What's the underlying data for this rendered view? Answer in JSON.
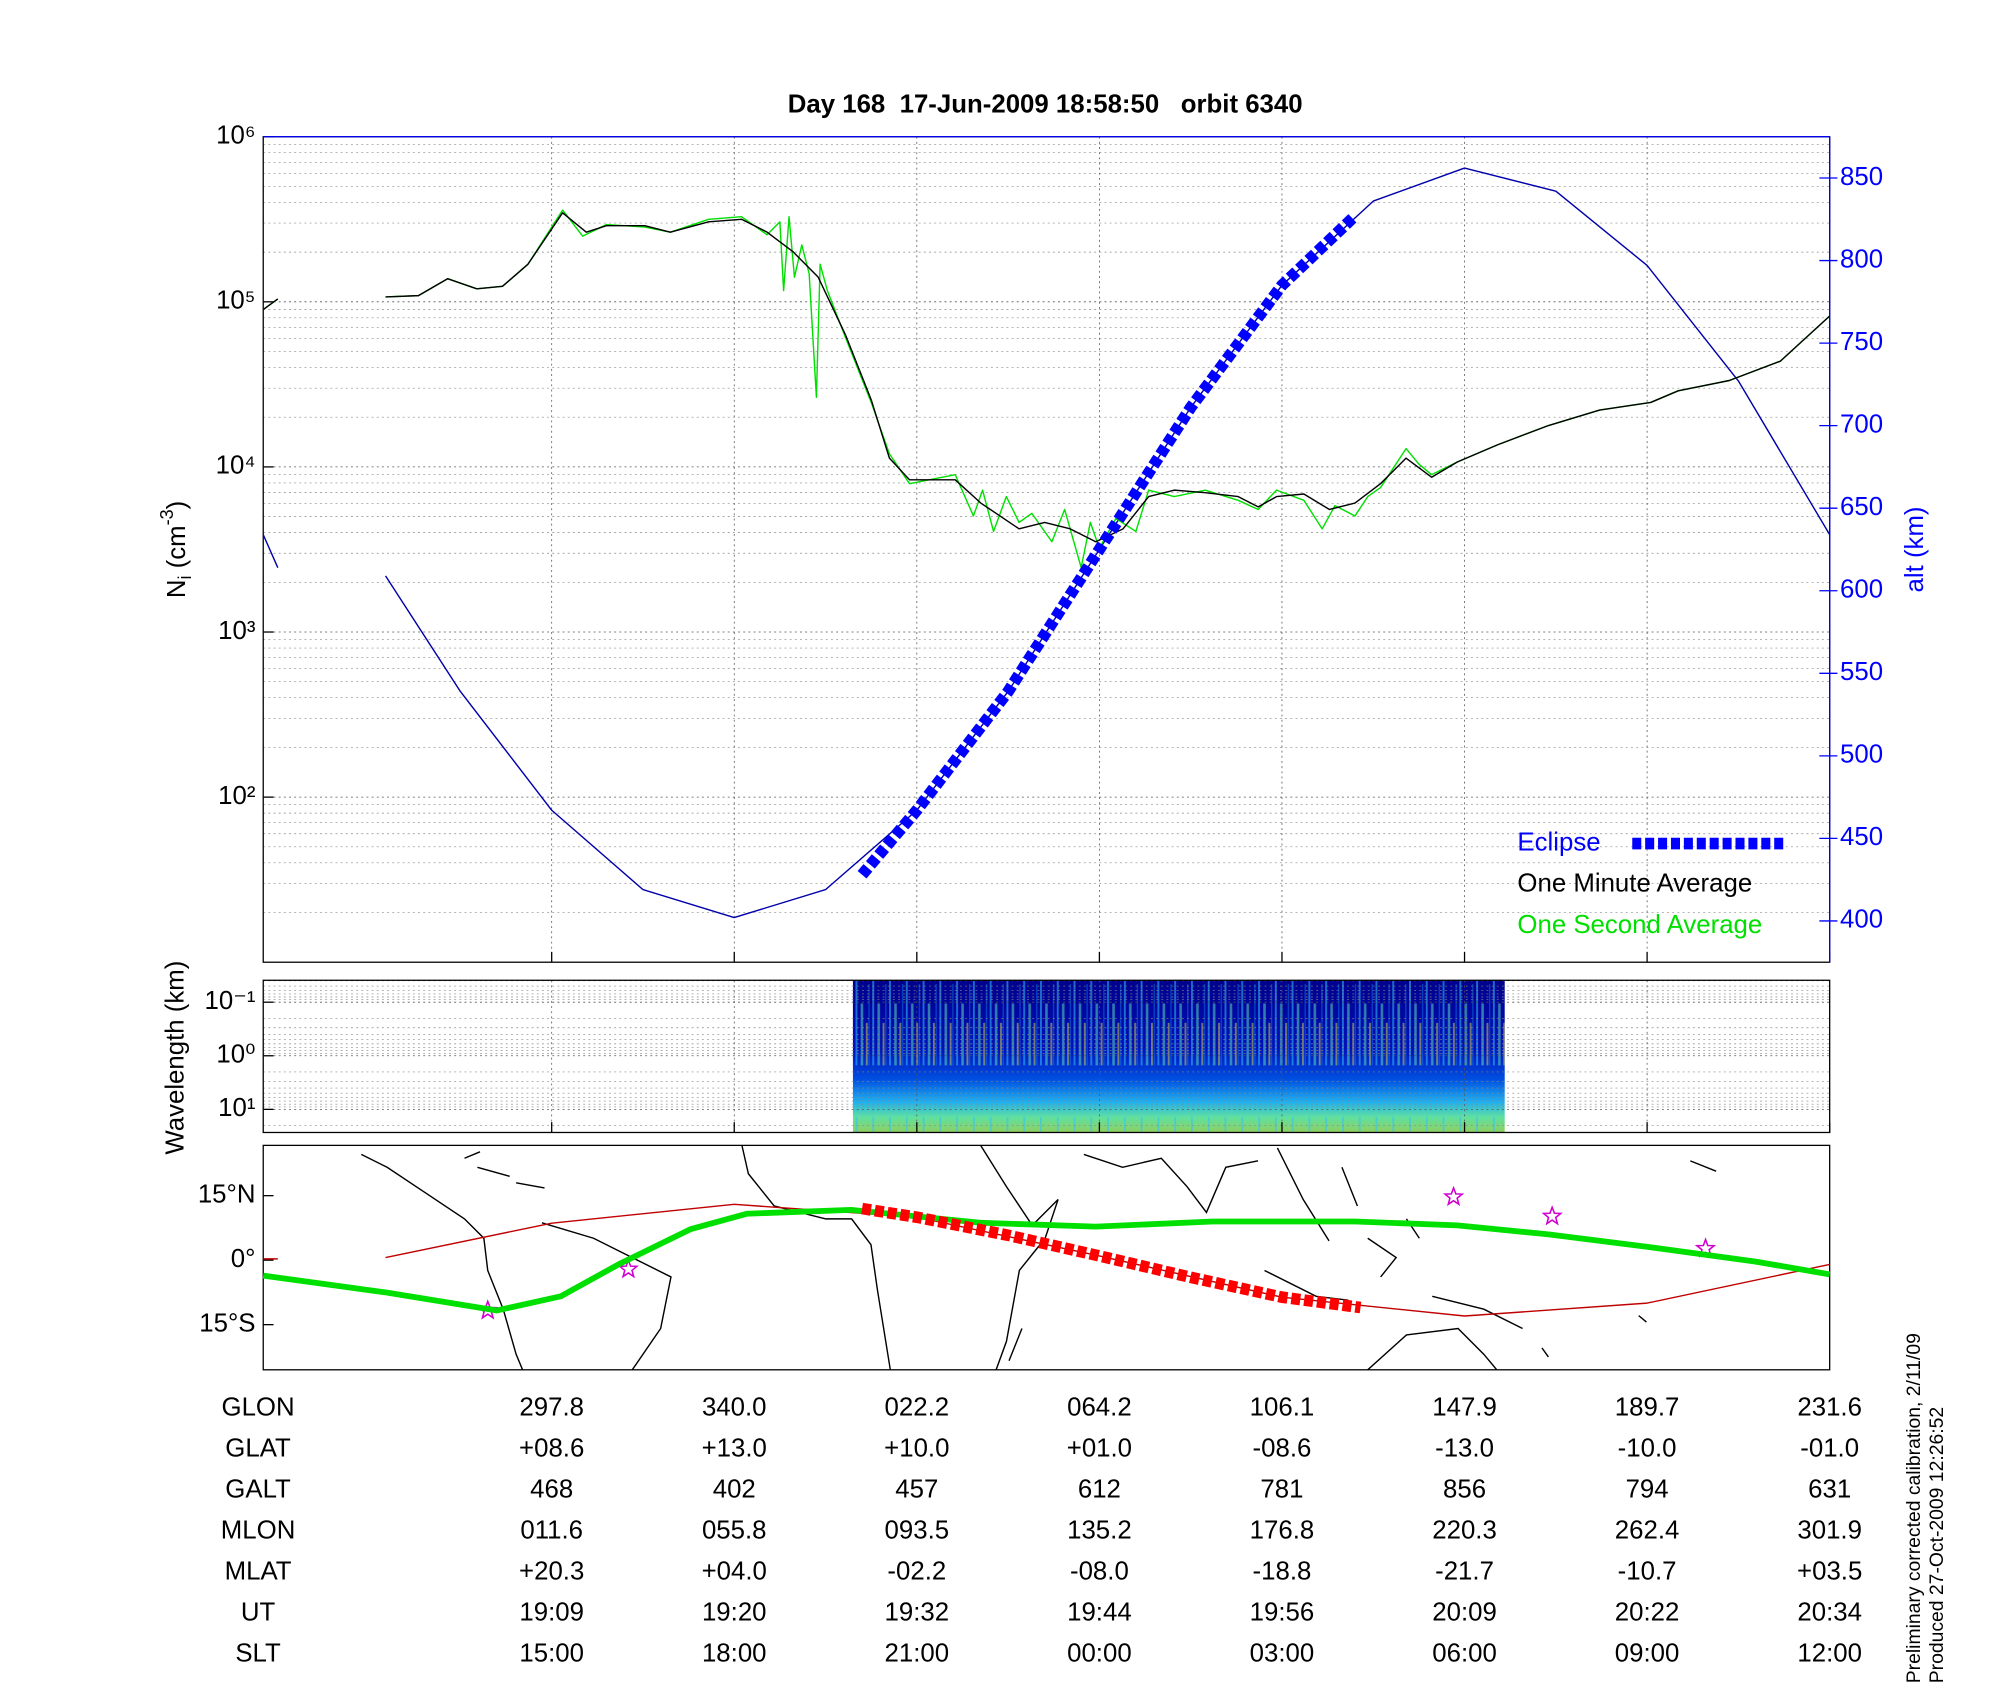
{
  "chart_data": [
    {
      "type": "line",
      "title": "Day 168  17-Jun-2009 18:58:50   orbit 6340",
      "ylabel": {
        "text": "N",
        "sub": "i",
        "unit": " (cm",
        "sup": "-3",
        "close": ")"
      },
      "y2label": "alt (km)",
      "xlim": [
        -1.58,
        7
      ],
      "xticks": [
        0,
        1,
        2,
        3,
        4,
        5,
        6,
        7
      ],
      "ylog": true,
      "ylim": [
        10,
        1000000
      ],
      "yticks": [
        {
          "value": 100,
          "label": "10²"
        },
        {
          "value": 1000,
          "label": "10³"
        },
        {
          "value": 10000,
          "label": "10⁴"
        },
        {
          "value": 100000,
          "label": "10⁵"
        },
        {
          "value": 1000000,
          "label": "10⁶"
        }
      ],
      "yminorticks": [
        20,
        30,
        40,
        50,
        60,
        70,
        80,
        90,
        200,
        300,
        400,
        500,
        600,
        700,
        800,
        900,
        2000,
        3000,
        4000,
        5000,
        6000,
        7000,
        8000,
        9000,
        20000,
        30000,
        40000,
        50000,
        60000,
        70000,
        80000,
        90000,
        200000,
        300000,
        400000,
        500000,
        600000,
        700000,
        800000,
        900000
      ],
      "y2lim": [
        375,
        875
      ],
      "y2ticks": [
        400,
        450,
        500,
        550,
        600,
        650,
        700,
        750,
        800,
        850
      ],
      "y2color": "#0000ff",
      "grid": true,
      "legend": "lower right",
      "series": [
        {
          "name": "Eclipse",
          "color": "#0000ff",
          "style": "dashed",
          "axis": "y2",
          "x": [
            1.7,
            2,
            2.5,
            3,
            3.5,
            4,
            4.4
          ],
          "values": [
            428,
            467,
            539,
            625,
            711,
            785,
            827
          ]
        },
        {
          "name": "One Minute Average",
          "color": "#000000",
          "style": "solid",
          "x": [
            -1.58,
            -1.5,
            null,
            -0.91,
            -0.73,
            -0.57,
            -0.41,
            -0.27,
            -0.13,
            0.06,
            0.19,
            0.3,
            0.51,
            0.65,
            0.86,
            1.04,
            1.18,
            1.32,
            1.46,
            1.61,
            1.75,
            1.85,
            1.96,
            2.21,
            2.35,
            2.56,
            2.7,
            2.84,
            2.98,
            3.13,
            3.27,
            3.41,
            3.58,
            3.76,
            3.87,
            3.97,
            4.12,
            4.26,
            4.4,
            4.54,
            4.68,
            4.82,
            4.96,
            5.18,
            5.46,
            5.74,
            6.02,
            6.17,
            6.45,
            6.73,
            7.0
          ],
          "values": [
            89800,
            104000,
            null,
            107000,
            109000,
            138000,
            120000,
            124000,
            169000,
            346000,
            264000,
            289000,
            289000,
            264000,
            305000,
            316000,
            264000,
            202000,
            141000,
            62600,
            25500,
            11300,
            8350,
            8350,
            6040,
            4220,
            4610,
            4220,
            3520,
            4220,
            6610,
            7230,
            6980,
            6610,
            5730,
            6610,
            6850,
            5520,
            6040,
            7910,
            11300,
            8660,
            10700,
            13600,
            17800,
            22100,
            24600,
            28900,
            33400,
            43700,
            82000
          ]
        },
        {
          "name": "One Second Average",
          "color": "#00e000",
          "style": "solid",
          "x": [
            -1.58,
            -1.5,
            null,
            -0.91,
            -0.73,
            -0.57,
            -0.41,
            -0.27,
            -0.13,
            0.06,
            0.17,
            0.3,
            0.51,
            0.65,
            0.86,
            1.04,
            1.18,
            1.25,
            1.27,
            1.3,
            1.33,
            1.37,
            1.41,
            1.45,
            1.47,
            1.51,
            1.61,
            1.75,
            1.85,
            1.96,
            2.21,
            2.31,
            2.36,
            2.42,
            2.49,
            2.56,
            2.63,
            2.74,
            2.81,
            2.9,
            2.95,
            3.0,
            3.09,
            3.2,
            3.27,
            3.41,
            3.58,
            3.76,
            3.87,
            3.97,
            4.12,
            4.22,
            4.29,
            4.4,
            4.47,
            4.54,
            4.68,
            4.75,
            4.82,
            4.96,
            5.18,
            5.46,
            5.74,
            6.02,
            6.17,
            6.45,
            6.73,
            7.0
          ],
          "values": [
            89800,
            104000,
            null,
            107000,
            109000,
            138000,
            120000,
            124000,
            169000,
            359000,
            250000,
            294000,
            284000,
            264000,
            316000,
            328000,
            255000,
            305000,
            117000,
            328000,
            141000,
            221000,
            148000,
            26400,
            169000,
            117000,
            60400,
            24600,
            12000,
            7910,
            8980,
            5050,
            7230,
            4070,
            6610,
            4610,
            5230,
            3520,
            5520,
            2460,
            4610,
            3220,
            4870,
            4070,
            7230,
            6610,
            7230,
            6270,
            5520,
            7230,
            6270,
            4220,
            5830,
            5050,
            6610,
            7500,
            12900,
            10400,
            8980,
            10700,
            13600,
            17800,
            22100,
            24600,
            28900,
            33400,
            43700,
            82000
          ]
        },
        {
          "color": "#0000aa",
          "style": "solid",
          "axis": "y2",
          "x": [
            -1.58,
            -1.5,
            null,
            -0.91,
            -0.5,
            0,
            0.5,
            1,
            1.5,
            2,
            2.5,
            3,
            3.5,
            4,
            4.5,
            5,
            5.5,
            6,
            6.5,
            7
          ],
          "values": [
            634,
            614,
            null,
            609,
            539,
            467,
            419,
            402,
            419,
            467,
            539,
            625,
            711,
            785,
            836,
            856,
            842,
            797,
            727,
            634
          ]
        }
      ]
    },
    {
      "type": "spectrogram",
      "ylabel": "Wavelength (km)",
      "xlim": [
        -1.58,
        7
      ],
      "xticks": [
        0,
        1,
        2,
        3,
        4,
        5,
        6,
        7
      ],
      "ylog": true,
      "ylim": [
        27,
        0.039
      ],
      "yticks": [
        {
          "value": 0.1,
          "label": "10⁻¹"
        },
        {
          "value": 1,
          "label": "10⁰"
        },
        {
          "value": 10,
          "label": "10¹"
        }
      ],
      "yminorticks": [
        0.04,
        0.05,
        0.06,
        0.07,
        0.08,
        0.09,
        0.2,
        0.3,
        0.4,
        0.5,
        0.6,
        0.7,
        0.8,
        0.9,
        2,
        3,
        4,
        5,
        6,
        7,
        8,
        9,
        20
      ],
      "grid": true,
      "x": [
        1.65,
        5.22
      ]
    },
    {
      "type": "map",
      "xlim": [
        -1.58,
        7
      ],
      "ylim": [
        -25.5,
        26.7
      ],
      "yticks": [
        {
          "value": 15,
          "label": "15°N"
        },
        {
          "value": 0,
          "label": "0°"
        },
        {
          "value": -15,
          "label": "15°S"
        }
      ],
      "grid": false,
      "series": [
        {
          "color": "#ff0000",
          "style": "dashed",
          "x": [
            1.7,
            2,
            2.5,
            3,
            3.5,
            4,
            4.43
          ],
          "values": [
            12.0,
            10.0,
            5.8,
            1.0,
            -4.0,
            -8.6,
            -11.0
          ]
        },
        {
          "color": "#00e000",
          "style": "thick",
          "x": [
            -1.58,
            -0.91,
            -0.3,
            0.05,
            0.37,
            0.76,
            1.07,
            1.64,
            2.35,
            2.98,
            3.62,
            4.4,
            4.96,
            5.46,
            6.02,
            6.59,
            7.0
          ],
          "values": [
            -3.6,
            -7.5,
            -11.7,
            -8.4,
            -0.9,
            7.2,
            10.8,
            11.7,
            8.7,
            7.8,
            9.0,
            9.0,
            8.1,
            6.0,
            3.0,
            -0.3,
            -3.3
          ]
        },
        {
          "color": "#c00000",
          "style": "solid",
          "x": [
            -1.58,
            -1.5,
            null,
            -0.91,
            0,
            1,
            2,
            3,
            4,
            5,
            6,
            7
          ],
          "values": [
            0.3,
            0.3,
            null,
            0.6,
            8.6,
            13.0,
            10.0,
            1.0,
            -8.6,
            -13.0,
            -10.0,
            -1.0
          ]
        },
        {
          "color": "#d000d0",
          "style": "star",
          "x": [
            -0.35,
            0.42,
            4.94,
            5.48,
            6.32
          ],
          "values": [
            -11.7,
            -2.1,
            14.7,
            10.2,
            2.7
          ]
        }
      ]
    }
  ],
  "table": {
    "rows": [
      {
        "label": "GLON",
        "values": [
          "297.8",
          "340.0",
          "022.2",
          "064.2",
          "106.1",
          "147.9",
          "189.7",
          "231.6"
        ]
      },
      {
        "label": "GLAT",
        "values": [
          "+08.6",
          "+13.0",
          "+10.0",
          "+01.0",
          "-08.6",
          "-13.0",
          "-10.0",
          "-01.0"
        ]
      },
      {
        "label": "GALT",
        "values": [
          "468",
          "402",
          "457",
          "612",
          "781",
          "856",
          "794",
          "631"
        ]
      },
      {
        "label": "MLON",
        "values": [
          "011.6",
          "055.8",
          "093.5",
          "135.2",
          "176.8",
          "220.3",
          "262.4",
          "301.9"
        ]
      },
      {
        "label": "MLAT",
        "values": [
          "+20.3",
          "+04.0",
          "-02.2",
          "-08.0",
          "-18.8",
          "-21.7",
          "-10.7",
          "+03.5"
        ]
      },
      {
        "label": "UT",
        "values": [
          "19:09",
          "19:20",
          "19:32",
          "19:44",
          "19:56",
          "20:09",
          "20:22",
          "20:34"
        ]
      },
      {
        "label": "SLT",
        "values": [
          "15:00",
          "18:00",
          "21:00",
          "00:00",
          "03:00",
          "06:00",
          "09:00",
          "12:00"
        ]
      }
    ]
  },
  "footnotes": [
    "Preliminary corrected calibration, 2/11/09",
    "Produced 27-Oct-2009 12:26:52"
  ]
}
